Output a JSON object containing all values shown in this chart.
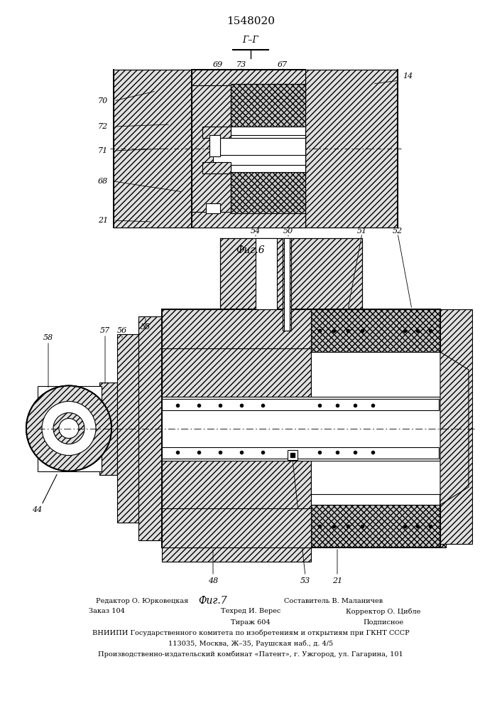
{
  "title": "1548020",
  "bg_color": "#ffffff",
  "fig_width": 7.07,
  "fig_height": 10.0,
  "fig6_caption": "Фиг.6",
  "fig7_caption": "Фиг.7",
  "footer_lines": [
    [
      "Редактор О. Юрковецкая",
      "Составитель В. Маланичев"
    ],
    [
      "Заказ 104",
      "Техред И. Верес",
      "Корректор О. Цибле"
    ],
    [
      "",
      "Тираж 604",
      "Подписное"
    ],
    [
      "ВНИИПИ Государственного комитета по изобретениям и открытиям при ГКНТ СССР"
    ],
    [
      "113035, Москва, Ж–35, Раушская наб., д. 4/5"
    ],
    [
      "Производственно-издательский комбинат «Патент», г. Ужгород, ул. Гагарина, 101"
    ]
  ]
}
